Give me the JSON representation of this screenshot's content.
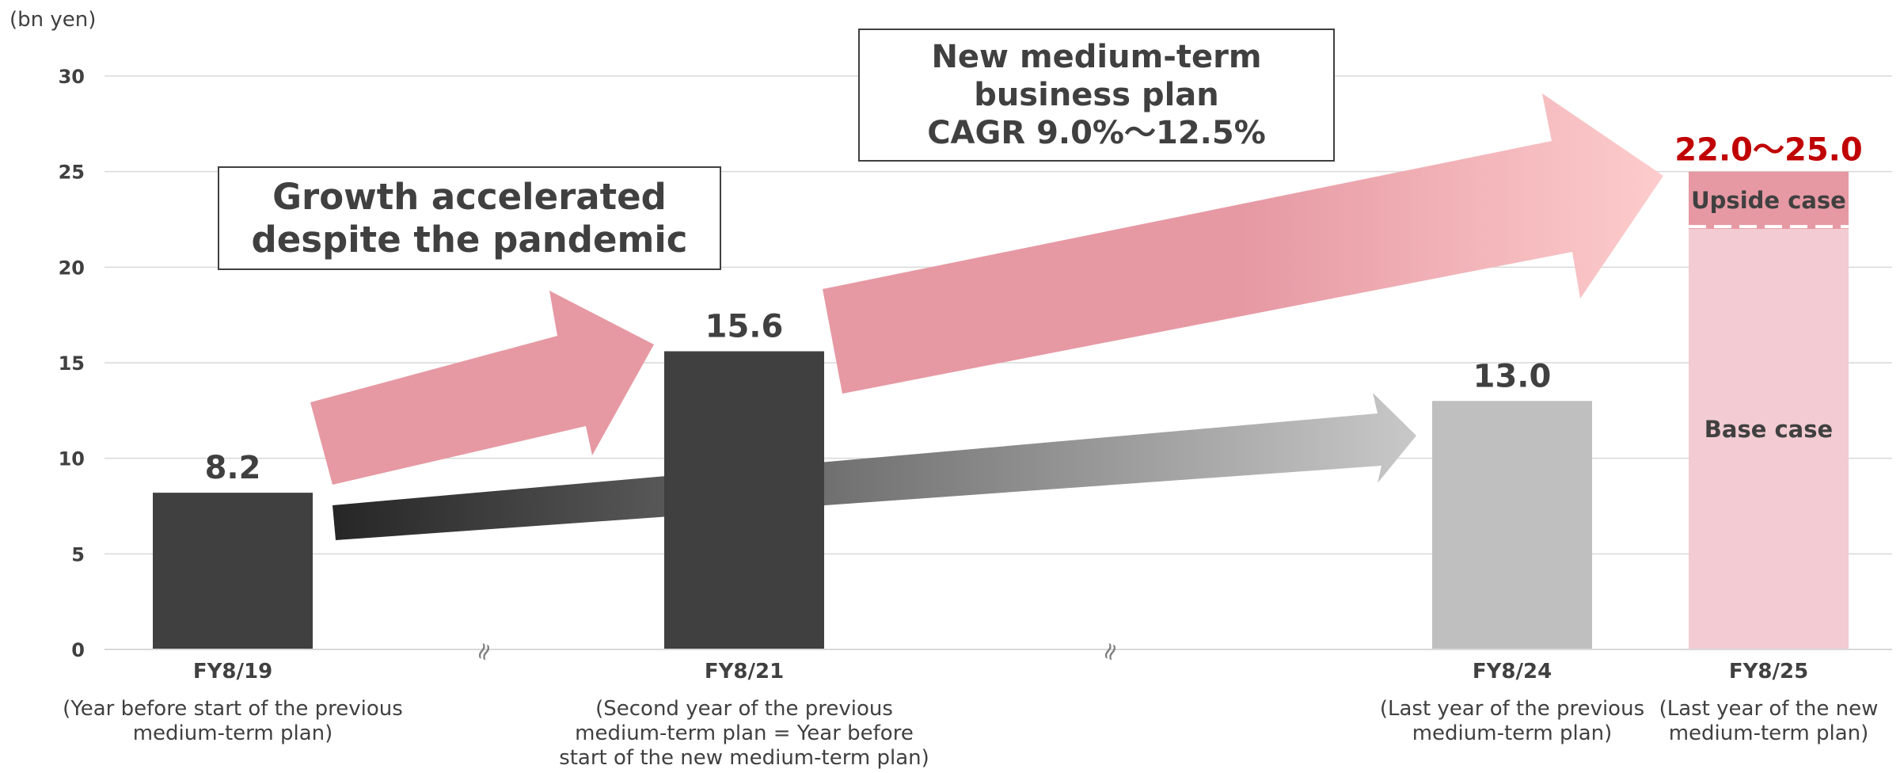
{
  "chart_data": {
    "type": "bar",
    "unit_label": "(bn yen)",
    "ylim": [
      0,
      30
    ],
    "yticks": [
      0,
      5,
      10,
      15,
      20,
      25,
      30
    ],
    "grid": true,
    "categories": [
      {
        "label": "FY8/19",
        "sublabel": "(Year before start of the previous\nmedium-term plan)"
      },
      {
        "label": "FY8/21",
        "sublabel": "(Second year of the previous\nmedium-term plan = Year before\nstart of the new medium-term plan)"
      },
      {
        "label": "FY8/24",
        "sublabel": "(Last year of the previous\nmedium-term plan)"
      },
      {
        "label": "FY8/25",
        "sublabel": "(Last year of the new\nmedium-term plan)"
      }
    ],
    "bars": [
      {
        "category": "FY8/19",
        "value": 8.2,
        "label": "8.2",
        "color": "#404040"
      },
      {
        "category": "FY8/21",
        "value": 15.6,
        "label": "15.6",
        "color": "#404040"
      },
      {
        "category": "FY8/24",
        "value": 13.0,
        "label": "13.0",
        "color": "#bfbfbf"
      }
    ],
    "range_bar": {
      "category": "FY8/25",
      "range_label": "22.0～25.0",
      "range_color": "#c00000",
      "segments": [
        {
          "name": "Base case",
          "low": 0,
          "high": 22.0,
          "color": "#f2ccd2"
        },
        {
          "name": "Upside case",
          "low": 22.0,
          "high": 25.0,
          "color": "#e699a3"
        }
      ]
    },
    "axis_break_symbol": "≈",
    "annotations": [
      {
        "text": "Growth accelerated\ndespite the pandemic"
      },
      {
        "text": "New medium-term\nbusiness plan\nCAGR 9.0%～12.5%"
      }
    ],
    "colors": {
      "dark_bar": "#404040",
      "gray_bar": "#bfbfbf",
      "pink_arrow": "#e699a3",
      "light_pink": "#fcc8c8"
    }
  }
}
